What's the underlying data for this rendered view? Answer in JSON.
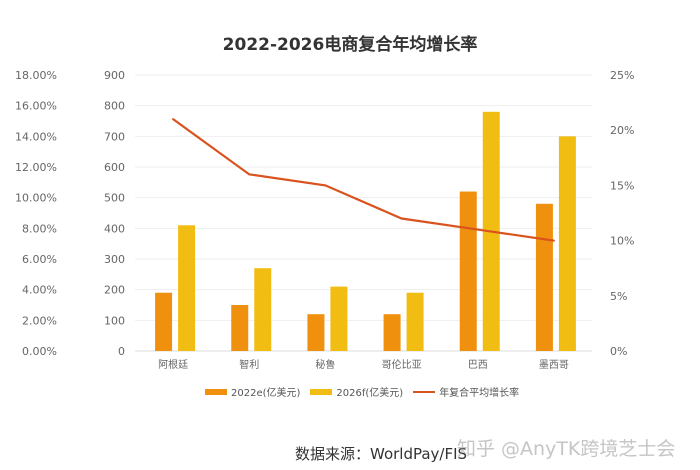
{
  "chart_data": {
    "type": "bar",
    "title": "2022-2026电商复合年均增长率",
    "categories": [
      "阿根廷",
      "智利",
      "秘鲁",
      "哥伦比亚",
      "巴西",
      "墨西哥"
    ],
    "series": [
      {
        "name": "2022e(亿美元)",
        "type": "bar",
        "axis": "left",
        "color": "#f0900f",
        "values": [
          190,
          150,
          120,
          120,
          520,
          480
        ]
      },
      {
        "name": "2026f(亿美元)",
        "type": "bar",
        "axis": "left",
        "color": "#f2bd12",
        "values": [
          410,
          270,
          210,
          190,
          780,
          700
        ]
      },
      {
        "name": "年复合平均增长率",
        "type": "line",
        "axis": "right",
        "color": "#d9531e",
        "values": [
          21,
          16,
          15,
          12,
          11,
          10
        ]
      }
    ],
    "y_left": {
      "range": [
        0,
        900
      ],
      "ticks": [
        "0",
        "100",
        "200",
        "300",
        "400",
        "500",
        "600",
        "700",
        "800",
        "900"
      ]
    },
    "y_right": {
      "range": [
        0,
        25
      ],
      "ticks": [
        "0%",
        "5%",
        "10%",
        "15%",
        "20%",
        "25%"
      ]
    },
    "y_outer": {
      "range": [
        0,
        18
      ],
      "ticks": [
        "0.00%",
        "2.00%",
        "4.00%",
        "6.00%",
        "8.00%",
        "10.00%",
        "12.00%",
        "14.00%",
        "16.00%",
        "18.00%"
      ]
    },
    "grid": true,
    "legend_position": "bottom"
  },
  "footer": {
    "source": "数据来源：WorldPay/FIS",
    "watermark": "知乎 @AnyTK跨境芝士会"
  }
}
